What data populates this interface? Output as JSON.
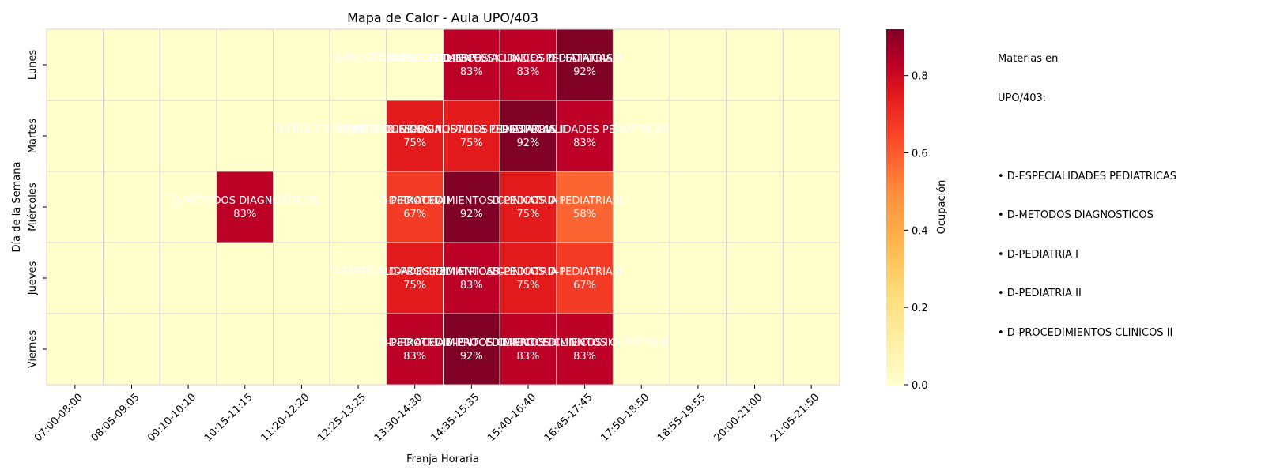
{
  "chart_data": {
    "type": "heatmap",
    "title": "Mapa de Calor - Aula UPO/403",
    "xlabel": "Franja Horaria",
    "ylabel": "Día de la Semana",
    "x_categories": [
      "07:00-08:00",
      "08:05-09:05",
      "09:10-10:10",
      "10:15-11:15",
      "11:20-12:20",
      "12:25-13:25",
      "13:30-14:30",
      "14:35-15:35",
      "15:40-16:40",
      "16:45-17:45",
      "17:50-18:50",
      "18:55-19:55",
      "20:00-21:00",
      "21:05-21:50"
    ],
    "y_categories": [
      "Lunes",
      "Martes",
      "Miércoles",
      "Jueves",
      "Viernes"
    ],
    "values": [
      [
        0,
        0,
        0,
        0,
        0,
        0,
        0,
        0.83,
        0.83,
        0.92,
        0,
        0,
        0,
        0
      ],
      [
        0,
        0,
        0,
        0,
        0,
        0,
        0.75,
        0.75,
        0.92,
        0.83,
        0,
        0,
        0,
        0
      ],
      [
        0,
        0,
        0,
        0.83,
        0,
        0,
        0.67,
        0.92,
        0.75,
        0.58,
        0,
        0,
        0,
        0
      ],
      [
        0,
        0,
        0,
        0,
        0,
        0,
        0.75,
        0.83,
        0.75,
        0.67,
        0,
        0,
        0,
        0
      ],
      [
        0,
        0,
        0,
        0,
        0,
        0,
        0.83,
        0.92,
        0.83,
        0.83,
        0,
        0,
        0,
        0
      ]
    ],
    "cell_labels": [
      {
        "row": 0,
        "col": 6,
        "subject": "D-PROCEDIMIENTOS CLINICOS II",
        "pct": ""
      },
      {
        "row": 0,
        "col": 7,
        "subject": "D-PROCEDIMIENTOS CLINICOS II",
        "pct": "83%"
      },
      {
        "row": 0,
        "col": 8,
        "subject": "D-ESPECIALIDADES PEDIATRICAS",
        "pct": "83%"
      },
      {
        "row": 0,
        "col": 9,
        "subject": "D-PEDIATRIA II",
        "pct": "92%"
      },
      {
        "row": 1,
        "col": 5,
        "subject": "D-PROCEDIMIENTOS CLINICOS II",
        "pct": ""
      },
      {
        "row": 1,
        "col": 6,
        "subject": "D-METODOS DIAGNOSTICOS",
        "pct": "75%"
      },
      {
        "row": 1,
        "col": 7,
        "subject": "D-ESPECIALIDADES PEDIATRICAS",
        "pct": "75%"
      },
      {
        "row": 1,
        "col": 8,
        "subject": "D-PEDIATRIA II",
        "pct": "92%"
      },
      {
        "row": 1,
        "col": 9,
        "subject": "D-ESPECIALIDADES PEDIATRICAS",
        "pct": "83%"
      },
      {
        "row": 2,
        "col": 3,
        "subject": "D-METODOS DIAGNOSTICOS",
        "pct": "83%"
      },
      {
        "row": 2,
        "col": 6,
        "subject": "D-PEDIATRIA I",
        "pct": "67%"
      },
      {
        "row": 2,
        "col": 7,
        "subject": "D-PROCEDIMIENTOS CLINICOS II",
        "pct": "92%"
      },
      {
        "row": 2,
        "col": 8,
        "subject": "D-PEDIATRIA I",
        "pct": "75%"
      },
      {
        "row": 2,
        "col": 9,
        "subject": "D-PEDIATRIA II",
        "pct": "58%"
      },
      {
        "row": 3,
        "col": 6,
        "subject": "D-ESPECIALIDADES PEDIATRICAS",
        "pct": "75%"
      },
      {
        "row": 3,
        "col": 7,
        "subject": "D-PROCEDIMIENTOS CLINICOS II",
        "pct": "83%"
      },
      {
        "row": 3,
        "col": 8,
        "subject": "D-PEDIATRIA I",
        "pct": "75%"
      },
      {
        "row": 3,
        "col": 9,
        "subject": "D-PEDIATRIA II",
        "pct": "67%"
      },
      {
        "row": 4,
        "col": 6,
        "subject": "D-PEDIATRIA I",
        "pct": "83%"
      },
      {
        "row": 4,
        "col": 7,
        "subject": "D-PROCEDIMIENTOS CLINICOS II",
        "pct": "92%"
      },
      {
        "row": 4,
        "col": 8,
        "subject": "D-PROCEDIMIENTOS CLINICOS II",
        "pct": "83%"
      },
      {
        "row": 4,
        "col": 9,
        "subject": "D-PROCEDIMIENTOS CLINICOS II",
        "pct": "83%"
      }
    ],
    "colorbar": {
      "label": "Ocupación",
      "range": [
        0,
        0.92
      ],
      "ticks": [
        "0.0",
        "0.2",
        "0.4",
        "0.6",
        "0.8"
      ],
      "tick_values": [
        0,
        0.2,
        0.4,
        0.6,
        0.8
      ],
      "colormap": "YlOrRd"
    },
    "grid": true
  },
  "legend": {
    "title_line1": "Materias en",
    "title_line2": "UPO/403:",
    "items": [
      "• D-ESPECIALIDADES PEDIATRICAS",
      "• D-METODOS DIAGNOSTICOS",
      "• D-PEDIATRIA I",
      "• D-PEDIATRIA II",
      "• D-PROCEDIMIENTOS CLINICOS II"
    ]
  }
}
